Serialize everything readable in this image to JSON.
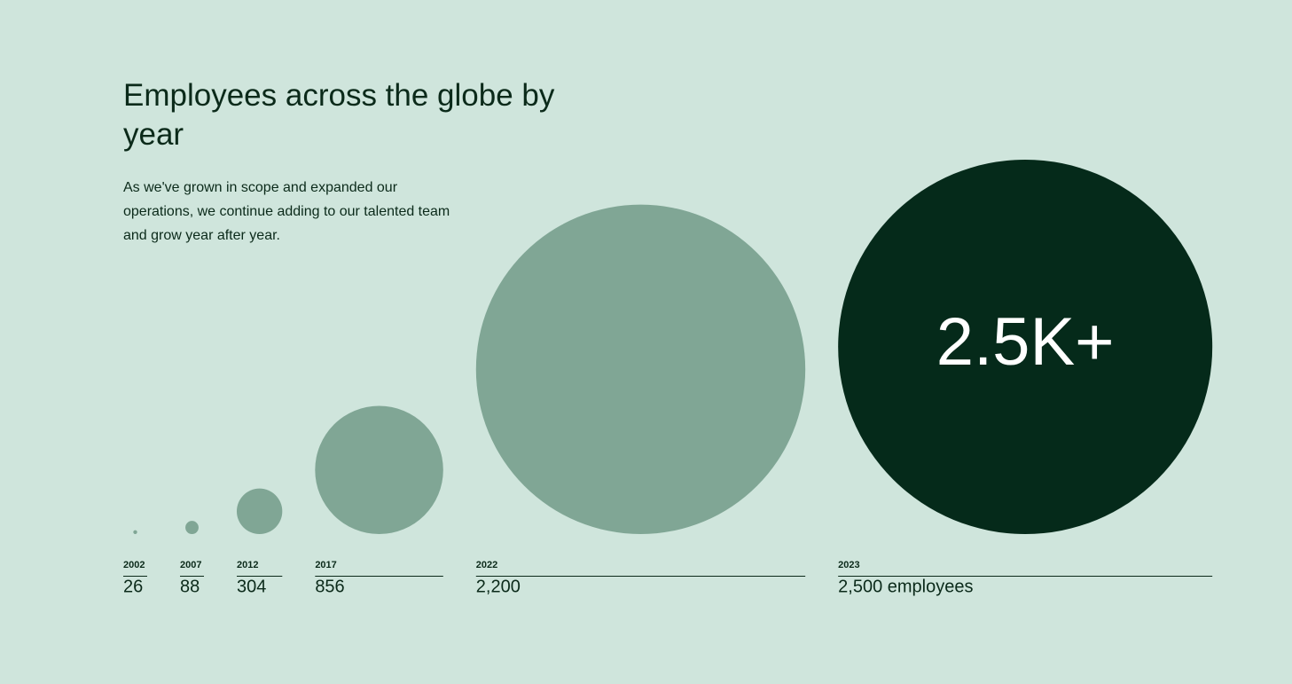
{
  "chart_data": {
    "type": "bubble",
    "title": "Employees across the globe by year",
    "subtitle": "As we've grown in scope and expanded our operations, we continue adding to our talented team and grow year after year.",
    "annotation": "2.5K+",
    "categories": [
      "2002",
      "2007",
      "2012",
      "2017",
      "2022",
      "2023"
    ],
    "values": [
      26,
      88,
      304,
      856,
      2200,
      2500
    ],
    "value_labels": [
      "26",
      "88",
      "304",
      "856",
      "2,200",
      "2,500 employees"
    ],
    "colors": [
      "#80a695",
      "#80a695",
      "#80a695",
      "#80a695",
      "#80a695",
      "#052a1a"
    ]
  }
}
